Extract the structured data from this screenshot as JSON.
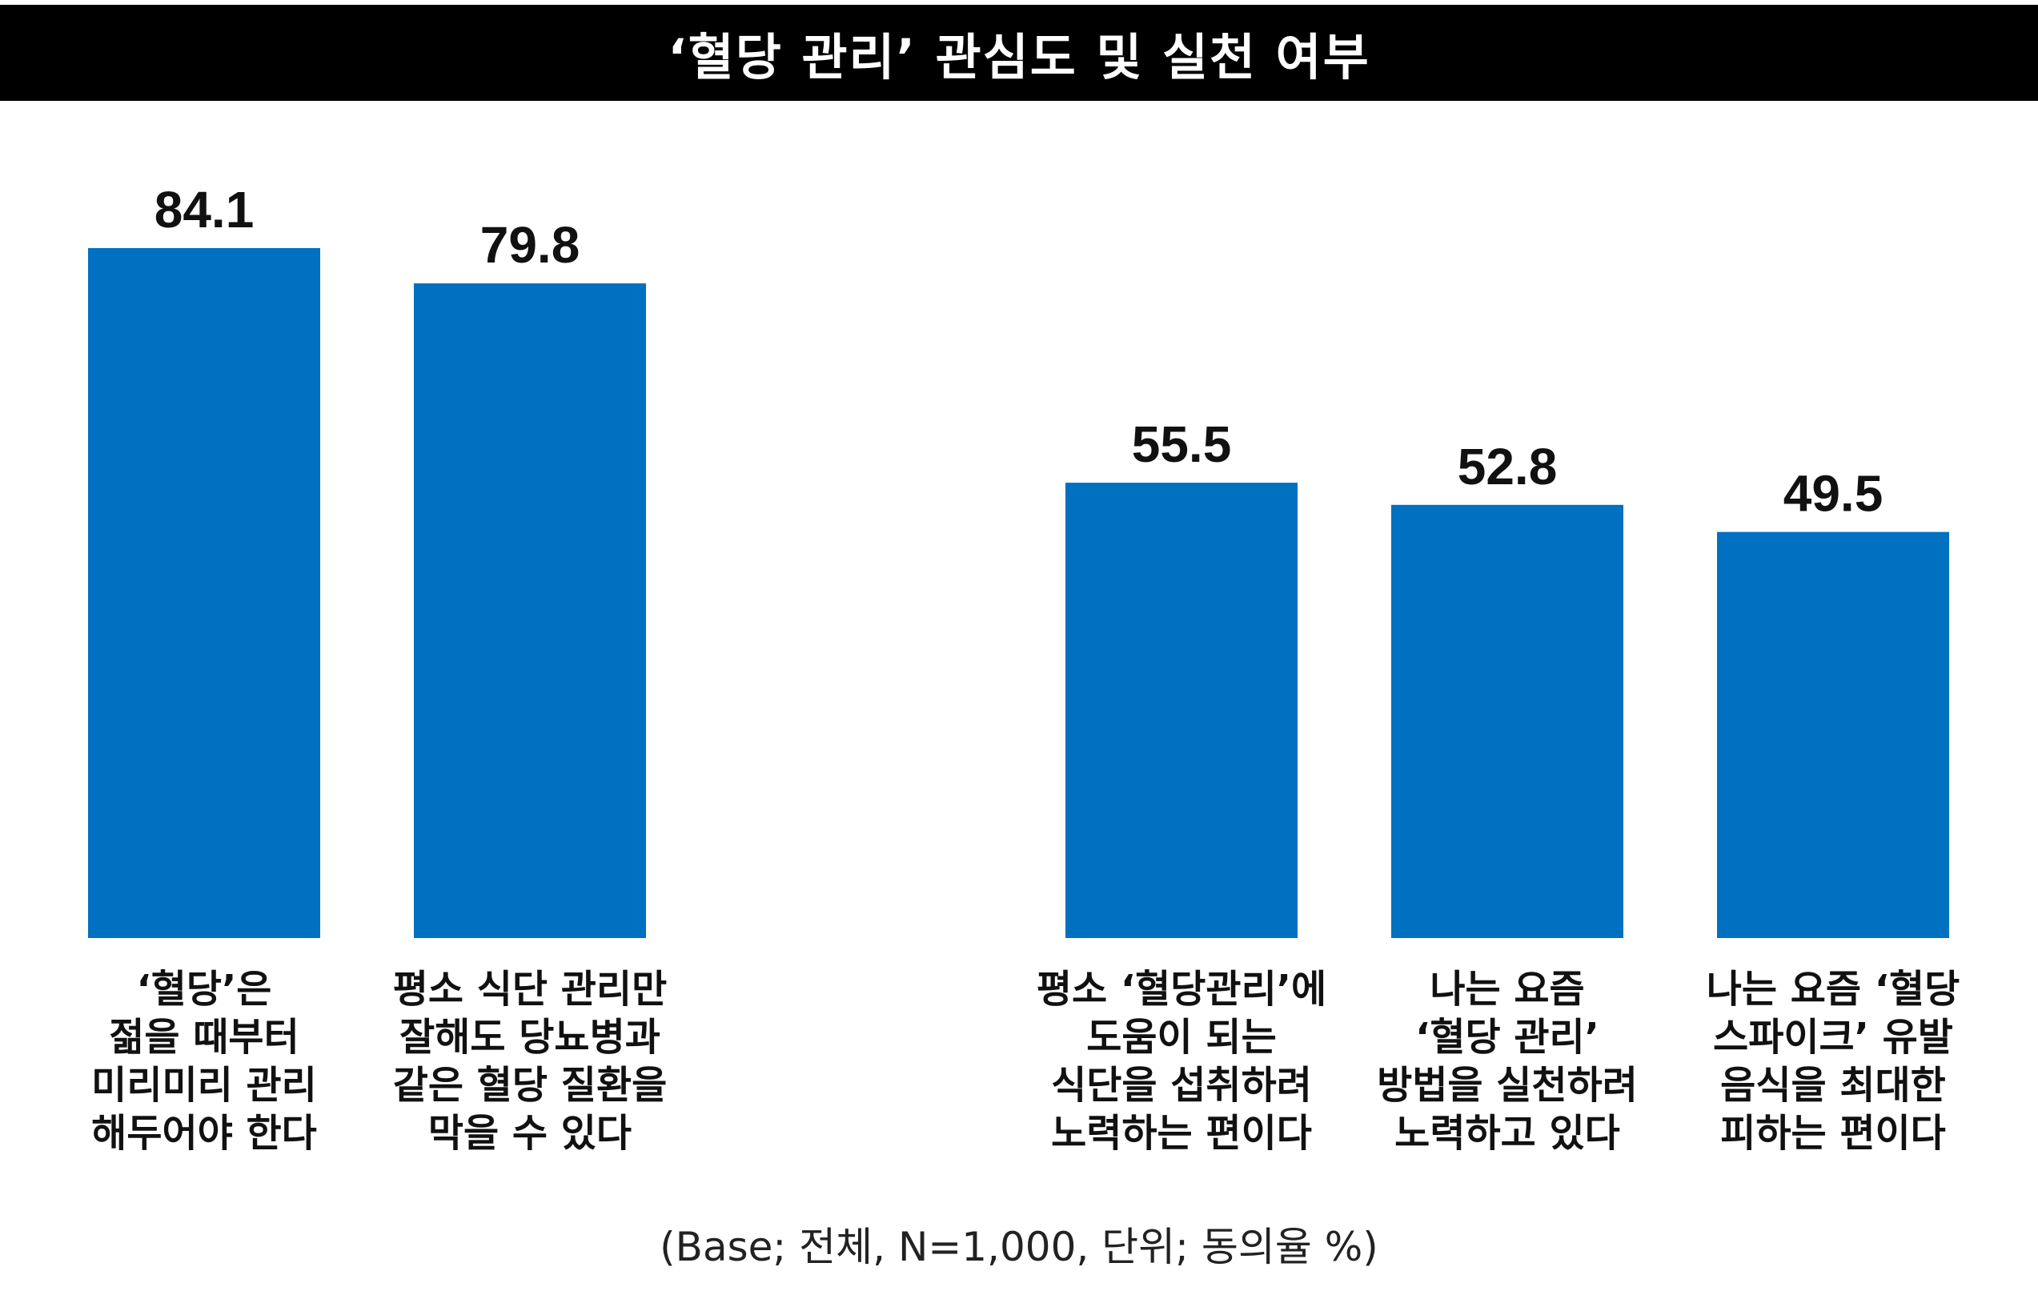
{
  "title": "‘혈당 관리’ 관심도 및 실천 여부",
  "footnote": "(Base; 전체, N=1,000, 단위; 동의율 %)",
  "colors": {
    "bar": "#0070c0",
    "title_bg": "#000000",
    "title_text": "#ffffff"
  },
  "chart_data": {
    "type": "bar",
    "title": "‘혈당 관리’ 관심도 및 실천 여부",
    "xlabel": "",
    "ylabel": "",
    "grid": false,
    "categories": [
      "‘혈당’은\n젊을 때부터\n미리미리 관리\n해두어야 한다",
      "평소 식단 관리만\n잘해도 당뇨병과\n같은 혈당 질환을\n막을 수 있다",
      "평소 ‘혈당관리’에\n도움이 되는\n식단을 섭취하려\n노력하는 편이다",
      "나는 요즘\n‘혈당 관리’\n방법을 실천하려\n노력하고 있다",
      "나는 요즘 ‘혈당\n스파이크’ 유발\n음식을 최대한\n피하는 편이다"
    ],
    "values": [
      84.1,
      79.8,
      55.5,
      52.8,
      49.5
    ],
    "value_labels": [
      "84.1",
      "79.8",
      "55.5",
      "52.8",
      "49.5"
    ]
  }
}
